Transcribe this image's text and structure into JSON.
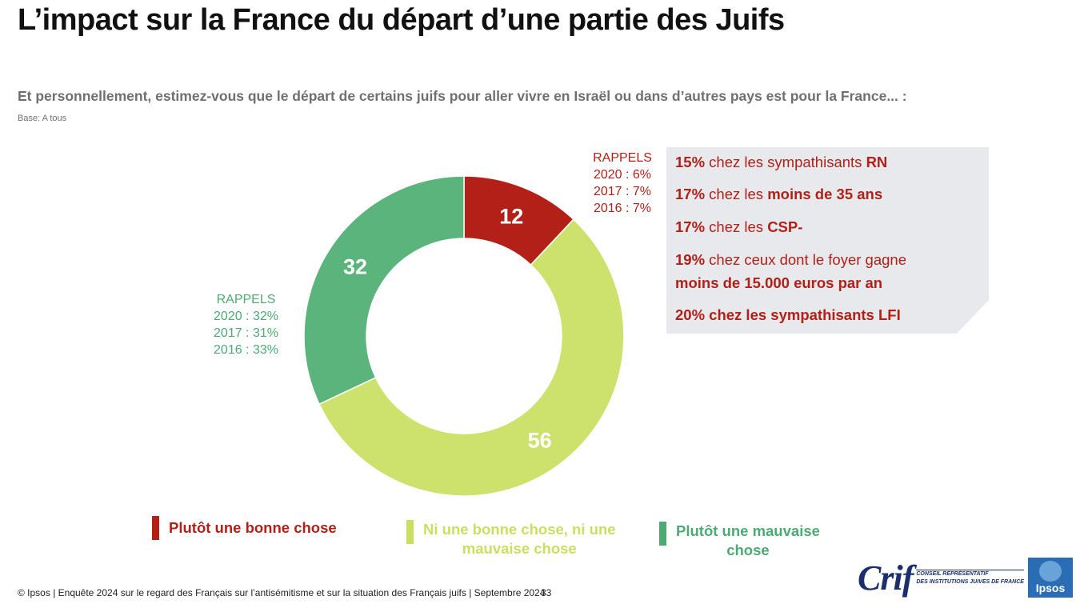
{
  "page": {
    "title": "L’impact sur la France du départ d’une partie des Juifs",
    "question": "Et personnellement, estimez-vous que le départ de certains juifs pour aller vivre en Israël ou dans d’autres pays est pour la France... :",
    "base": "Base: A tous"
  },
  "colors": {
    "red": "#b22018",
    "yellowgreen": "#cde26c",
    "green": "#5ab47b",
    "legend_yellow": "#c9df60",
    "legend_green": "#4daa74"
  },
  "chart_data": {
    "type": "pie",
    "categories": [
      "Plutôt une bonne chose",
      "Ni une bonne chose, ni une mauvaise chose",
      "Plutôt une mauvaise chose"
    ],
    "values": [
      12,
      56,
      32
    ],
    "value_labels": [
      "12",
      "56",
      "32"
    ],
    "donut": true
  },
  "rappels_red": {
    "title": "RAPPELS",
    "lines": [
      "2020 : 6%",
      "2017 : 7%",
      "2016 : 7%"
    ]
  },
  "rappels_green": {
    "title": "RAPPELS",
    "lines": [
      "2020 : 32%",
      "2017 : 31%",
      "2016 : 33%"
    ]
  },
  "infobox": {
    "l1_pct": "15%",
    "l1_text": " chez les sympathisants ",
    "l1_bold": "RN",
    "l2_pct": "17%",
    "l2_text": " chez les ",
    "l2_bold": "moins de 35 ans",
    "l3_pct": "17%",
    "l3_text": " chez les ",
    "l3_bold": "CSP-",
    "l4_pct": "19%",
    "l4_text": " chez ceux dont le foyer gagne",
    "l4b_bold": "moins de 15.000 euros par an",
    "l5_bold": "20% chez les sympathisants LFI"
  },
  "legend": {
    "item1": "Plutôt une bonne chose",
    "item2_line1": "Ni une bonne chose, ni une",
    "item2_line2": "mauvaise chose",
    "item3_line1": "Plutôt une mauvaise",
    "item3_line2": "chose"
  },
  "footer": {
    "text": "© Ipsos | Enquête 2024 sur le regard des Français sur l’antisémitisme et sur la situation des Français juifs | Septembre 2024",
    "page_number": "33"
  },
  "logos": {
    "crif": "Crif",
    "crif_sub1": "CONSEIL REPRÉSENTATIF",
    "crif_sub2": "DES INSTITUTIONS JUIVES DE FRANCE",
    "ipsos": "Ipsos"
  }
}
